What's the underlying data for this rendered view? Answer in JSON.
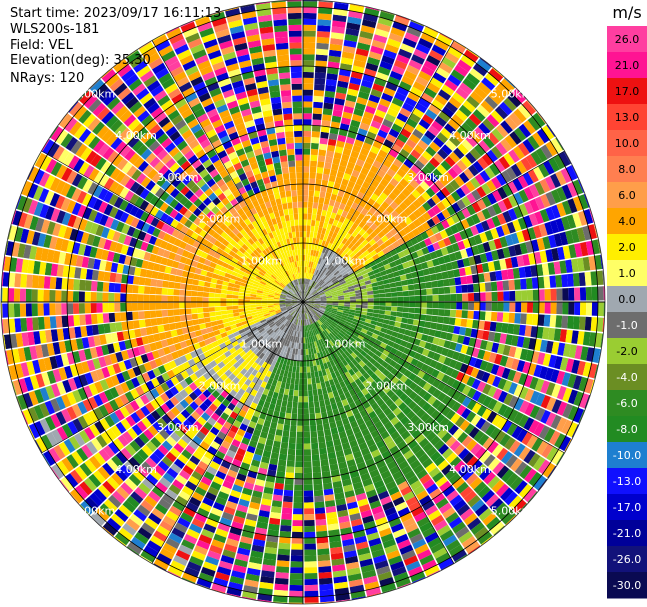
{
  "header": {
    "start_time": "Start time: 2023/09/17 16:11:13",
    "instrument": "WLS200s-181",
    "field": "Field: VEL",
    "elevation": "Elevation(deg): 35.30",
    "nrays": "NRays: 120"
  },
  "chart_data": {
    "type": "heatmap",
    "projection": "ppi",
    "field": "VEL",
    "n_rays": 120,
    "range_rings": [
      "1.00km",
      "2.00km",
      "3.00km",
      "4.00km",
      "5.00km"
    ],
    "colorbar": {
      "unit": "m/s",
      "ticks": [
        "26.0",
        "21.0",
        "17.0",
        "13.0",
        "10.0",
        "8.0",
        "6.0",
        "4.0",
        "2.0",
        "1.0",
        "0.0",
        "-1.0",
        "-2.0",
        "-4.0",
        "-6.0",
        "-8.0",
        "-10.0",
        "-13.0",
        "-17.0",
        "-21.0",
        "-26.0",
        "-30.0"
      ],
      "colors": [
        "#ff3ea0",
        "#ff1493",
        "#ee1111",
        "#ff4433",
        "#ff6347",
        "#ff7f50",
        "#ff9e4a",
        "#ffa500",
        "#ffee00",
        "#ffff66",
        "#a0a8b0",
        "#6d6d6d",
        "#9acd32",
        "#6b8e23",
        "#2e8b22",
        "#228b22",
        "#1e7fd0",
        "#1010ff",
        "#0000cd",
        "#000099",
        "#12127a",
        "#0a0a52"
      ]
    },
    "zones": [
      {
        "region": "north, inner",
        "value_range": "2.0 to 8.0",
        "colors": [
          "#ffa500",
          "#ffee00"
        ]
      },
      {
        "region": "center",
        "value_range": "-1.0 to 1.0",
        "colors": [
          "#6d6d6d",
          "#a0a8b0"
        ]
      },
      {
        "region": "south-east, inner",
        "value_range": "-6.0 to -2.0",
        "colors": [
          "#228b22",
          "#9acd32"
        ]
      },
      {
        "region": "outer",
        "value_range": "noise",
        "colors": []
      }
    ]
  }
}
